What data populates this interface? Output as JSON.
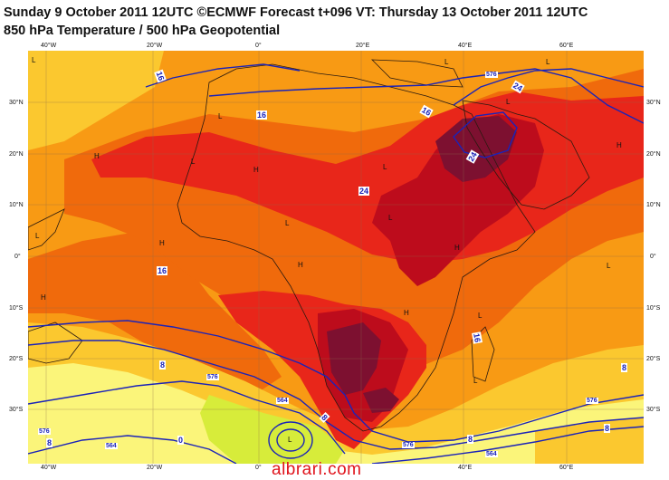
{
  "header": {
    "line1": "Sunday 9 October 2011 12UTC ©ECMWF Forecast t+096 VT: Thursday 13 October 2011 12UTC",
    "line2": "850 hPa Temperature / 500 hPa Geopotential"
  },
  "axes": {
    "lon_ticks": [
      "40°W",
      "20°W",
      "0°",
      "20°E",
      "40°E",
      "60°E"
    ],
    "lat_ticks_left": [
      "30°N",
      "20°N",
      "10°N",
      "0°",
      "10°S",
      "20°S",
      "30°S"
    ],
    "lat_ticks_right": [
      "30°N",
      "20°N",
      "10°N",
      "0°",
      "10°S",
      "20°S",
      "30°S"
    ]
  },
  "contour_labels": [
    "576",
    "24",
    "16",
    "16",
    "24",
    "16",
    "24",
    "16",
    "8",
    "576",
    "564",
    "8",
    "0",
    "564",
    "576",
    "576",
    "8",
    "8",
    "564",
    "576",
    "8",
    "8",
    "16"
  ],
  "pressure_markers": [
    "L",
    "L",
    "L",
    "L",
    "H",
    "H",
    "H",
    "H",
    "H",
    "H",
    "H",
    "L",
    "L",
    "L",
    "L",
    "H",
    "L",
    "L",
    "L",
    "L",
    "L",
    "L"
  ],
  "colors": {
    "t_0_8": "#fbf57a",
    "t_8_16": "#fbc82f",
    "t_16_20": "#f89a14",
    "t_20_24": "#f06a0c",
    "t_24_28": "#e8261a",
    "t_28_32": "#bd0c1c",
    "t_32_plus": "#7d1030",
    "green_low": "#d7ec3a",
    "contour": "#1b23b8"
  },
  "watermark": "albrari.com"
}
